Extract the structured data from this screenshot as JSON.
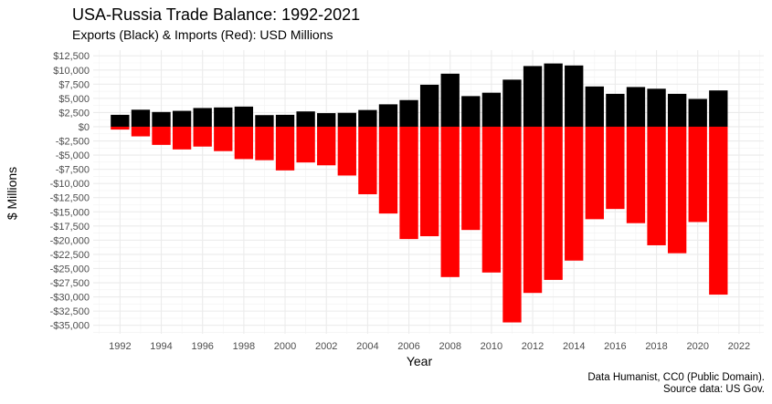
{
  "chart_data": {
    "type": "bar",
    "title": "USA-Russia Trade Balance: 1992-2021",
    "subtitle": "Exports (Black) & Imports (Red): USD Millions",
    "xlabel": "Year",
    "ylabel": "$ Millions",
    "caption_line1": "Data Humanist, CC0 (Public Domain).",
    "caption_line2": "Source data: US Gov.",
    "grid": true,
    "xlim": [
      1990.7,
      2023.2
    ],
    "ylim": [
      -36500,
      13500
    ],
    "x_ticks": [
      1992,
      1994,
      1996,
      1998,
      2000,
      2002,
      2004,
      2006,
      2008,
      2010,
      2012,
      2014,
      2016,
      2018,
      2020,
      2022
    ],
    "x_tick_labels": [
      "1992",
      "1994",
      "1996",
      "1998",
      "2000",
      "2002",
      "2004",
      "2006",
      "2008",
      "2010",
      "2012",
      "2014",
      "2016",
      "2018",
      "2020",
      "2022"
    ],
    "y_ticks": [
      12500,
      10000,
      7500,
      5000,
      2500,
      0,
      -2500,
      -5000,
      -7500,
      -10000,
      -12500,
      -15000,
      -17500,
      -20000,
      -22500,
      -25000,
      -27500,
      -30000,
      -32500,
      -35000
    ],
    "y_tick_labels": [
      "$12,500",
      "$10,000",
      "$7,500",
      "$5,000",
      "$2,500",
      "$0",
      "-$2,500",
      "-$5,000",
      "-$7,500",
      "-$10,000",
      "-$12,500",
      "-$15,000",
      "-$17,500",
      "-$20,000",
      "-$22,500",
      "-$25,000",
      "-$27,500",
      "-$30,000",
      "-$32,500",
      "-$35,000"
    ],
    "x": [
      1992,
      1993,
      1994,
      1995,
      1996,
      1997,
      1998,
      1999,
      2000,
      2001,
      2002,
      2003,
      2004,
      2005,
      2006,
      2007,
      2008,
      2009,
      2010,
      2011,
      2012,
      2013,
      2014,
      2015,
      2016,
      2017,
      2018,
      2019,
      2020,
      2021
    ],
    "series": [
      {
        "color": "#000000",
        "values": [
          2100,
          3000,
          2600,
          2800,
          3300,
          3400,
          3550,
          2050,
          2100,
          2700,
          2400,
          2450,
          2950,
          3950,
          4700,
          7400,
          9350,
          5400,
          6000,
          8300,
          10700,
          11150,
          10800,
          7100,
          5800,
          7000,
          6700,
          5800,
          4900,
          6400
        ]
      },
      {
        "color": "#ff0000",
        "values": [
          -500,
          -1700,
          -3200,
          -4000,
          -3500,
          -4300,
          -5700,
          -5900,
          -7700,
          -6300,
          -6800,
          -8600,
          -11900,
          -15300,
          -19800,
          -19300,
          -26500,
          -18200,
          -25700,
          -34500,
          -29300,
          -27000,
          -23600,
          -16300,
          -14500,
          -17000,
          -20900,
          -22300,
          -16800,
          -29600
        ]
      }
    ]
  }
}
